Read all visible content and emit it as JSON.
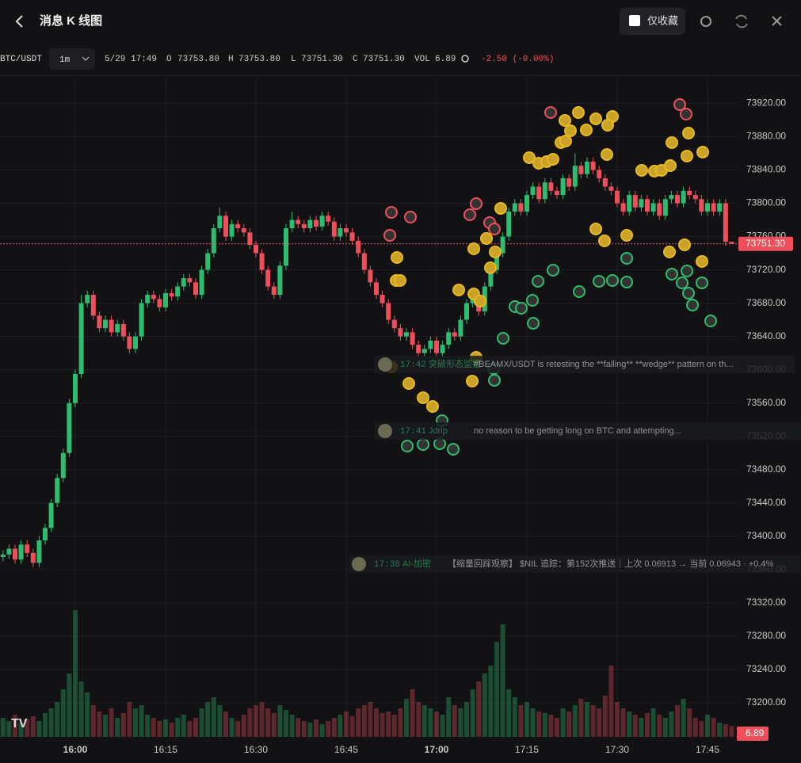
{
  "header": {
    "title": "消息 K 线图",
    "favorite_label": "仅收藏"
  },
  "toolbar": {
    "symbol": "BTC/USDT",
    "interval": "1m",
    "time": "5/29 17:49",
    "open_key": "O",
    "open": "73753.80",
    "high_key": "H",
    "high": "73753.80",
    "low_key": "L",
    "low": "73751.30",
    "close_key": "C",
    "close": "73751.30",
    "volume_key": "VOL",
    "volume": "6.89",
    "change": "-2.50 (-0.00%)"
  },
  "messages": [
    {
      "time": "17:42",
      "source": "突破形态监控",
      "text": "#BEAMX/USDT is retesting the **falling** **wedge** pattern on th..."
    },
    {
      "time": "17:41",
      "source": "Jdrip",
      "text": "no reason to be getting long on BTC and attempting..."
    },
    {
      "time": "17:38",
      "source": "AI-加密",
      "text": "【缩量回踩观察】 $NIL 追踪：第152次推送｜上次 0.06913 → 当前 0.06943 · +0.4%"
    }
  ],
  "chart_data": {
    "type": "candlestick",
    "up_color": "#2ebd6e",
    "down_color": "#ef4f5b",
    "grid": true,
    "ylim": [
      73159,
      73949
    ],
    "yticks": [
      {
        "value": 73200,
        "label": "73200.00"
      },
      {
        "value": 73240,
        "label": "73240.00"
      },
      {
        "value": 73280,
        "label": "73280.00"
      },
      {
        "value": 73320,
        "label": "73320.00"
      },
      {
        "value": 73360,
        "label": "73360.00"
      },
      {
        "value": 73400,
        "label": "73400.00"
      },
      {
        "value": 73440,
        "label": "73440.00"
      },
      {
        "value": 73480,
        "label": "73480.00"
      },
      {
        "value": 73520,
        "label": "73520.00"
      },
      {
        "value": 73560,
        "label": "73560.00"
      },
      {
        "value": 73600,
        "label": "73600.00"
      },
      {
        "value": 73640,
        "label": "73640.00"
      },
      {
        "value": 73680,
        "label": "73680.00"
      },
      {
        "value": 73720,
        "label": "73720.00"
      },
      {
        "value": 73760,
        "label": "73760.00"
      },
      {
        "value": 73800,
        "label": "73800.00"
      },
      {
        "value": 73840,
        "label": "73840.00"
      },
      {
        "value": 73880,
        "label": "73880.00"
      },
      {
        "value": 73920,
        "label": "73920.00"
      }
    ],
    "xticks": [
      {
        "value": 12,
        "label": "16:00"
      },
      {
        "value": 27,
        "label": "16:15"
      },
      {
        "value": 42,
        "label": "16:30"
      },
      {
        "value": 57,
        "label": "16:45"
      },
      {
        "value": 72,
        "label": "17:00"
      },
      {
        "value": 87,
        "label": "17:15"
      },
      {
        "value": 102,
        "label": "17:30"
      },
      {
        "value": 117,
        "label": "17:45"
      }
    ],
    "last_label": "73751.30",
    "open": [
      73375,
      73378,
      73385,
      73372,
      73390,
      73380,
      73368,
      73395,
      73410,
      73440,
      73470,
      73500,
      73560,
      73595,
      73680,
      73690,
      73665,
      73650,
      73660,
      73645,
      73655,
      73640,
      73625,
      73640,
      73680,
      73690,
      73685,
      73675,
      73692,
      73688,
      73700,
      73710,
      73705,
      73690,
      73720,
      73740,
      73770,
      73785,
      73760,
      73775,
      73770,
      73765,
      73750,
      73740,
      73720,
      73700,
      73690,
      73725,
      73770,
      73780,
      73775,
      73770,
      73780,
      73772,
      73785,
      73778,
      73760,
      73770,
      73765,
      73755,
      73740,
      73720,
      73705,
      73690,
      73680,
      73660,
      73650,
      73640,
      73645,
      73630,
      73620,
      73625,
      73635,
      73620,
      73630,
      73645,
      73640,
      73660,
      73680,
      73690,
      73670,
      73700,
      73720,
      73740,
      73760,
      73790,
      73800,
      73790,
      73810,
      73820,
      73805,
      73825,
      73815,
      73810,
      73830,
      73820,
      73845,
      73835,
      73850,
      73840,
      73830,
      73820,
      73815,
      73800,
      73790,
      73810,
      73795,
      73805,
      73790,
      73800,
      73785,
      73805,
      73810,
      73800,
      73815,
      73810,
      73805,
      73790,
      73800,
      73790,
      73800,
      73753.8
    ],
    "high": [
      73383,
      73390,
      73390,
      73395,
      73395,
      73385,
      73400,
      73415,
      73445,
      73475,
      73505,
      73565,
      73600,
      73690,
      73695,
      73695,
      73670,
      73665,
      73665,
      73660,
      73660,
      73645,
      73645,
      73685,
      73695,
      73695,
      73690,
      73697,
      73697,
      73705,
      73715,
      73715,
      73710,
      73725,
      73745,
      73775,
      73795,
      73790,
      73780,
      73780,
      73775,
      73770,
      73755,
      73745,
      73725,
      73705,
      73730,
      73775,
      73790,
      73785,
      73780,
      73785,
      73785,
      73790,
      73790,
      73783,
      73775,
      73775,
      73770,
      73760,
      73745,
      73725,
      73710,
      73695,
      73685,
      73665,
      73655,
      73650,
      73650,
      73635,
      73630,
      73640,
      73640,
      73635,
      73650,
      73650,
      73665,
      73685,
      73695,
      73695,
      73705,
      73725,
      73745,
      73765,
      73795,
      73805,
      73805,
      73815,
      73825,
      73825,
      73830,
      73830,
      73820,
      73835,
      73835,
      73860,
      73850,
      73855,
      73855,
      73845,
      73835,
      73825,
      73820,
      73805,
      73815,
      73815,
      73810,
      73810,
      73805,
      73805,
      73810,
      73815,
      73815,
      73820,
      73820,
      73815,
      73810,
      73805,
      73805,
      73805,
      73805,
      73753.8
    ],
    "low": [
      73370,
      73373,
      73367,
      73367,
      73375,
      73363,
      73363,
      73390,
      73405,
      73435,
      73465,
      73495,
      73555,
      73590,
      73675,
      73660,
      73645,
      73645,
      73640,
      73640,
      73635,
      73620,
      73620,
      73635,
      73675,
      73680,
      73670,
      73670,
      73683,
      73683,
      73695,
      73700,
      73685,
      73685,
      73715,
      73735,
      73765,
      73755,
      73755,
      73765,
      73760,
      73745,
      73735,
      73715,
      73695,
      73685,
      73685,
      73720,
      73765,
      73770,
      73765,
      73765,
      73767,
      73767,
      73773,
      73755,
      73755,
      73760,
      73750,
      73735,
      73715,
      73700,
      73685,
      73675,
      73655,
      73645,
      73635,
      73635,
      73625,
      73615,
      73615,
      73620,
      73615,
      73615,
      73625,
      73635,
      73635,
      73655,
      73675,
      73665,
      73665,
      73695,
      73715,
      73735,
      73755,
      73785,
      73785,
      73785,
      73805,
      73800,
      73800,
      73810,
      73805,
      73805,
      73815,
      73815,
      73830,
      73830,
      73835,
      73825,
      73815,
      73810,
      73795,
      73785,
      73785,
      73790,
      73790,
      73785,
      73785,
      73780,
      73780,
      73800,
      73795,
      73795,
      73805,
      73800,
      73785,
      73785,
      73785,
      73785,
      73748.8,
      73751.3
    ],
    "close": [
      73378,
      73385,
      73372,
      73390,
      73380,
      73368,
      73395,
      73410,
      73440,
      73470,
      73500,
      73560,
      73595,
      73680,
      73690,
      73665,
      73650,
      73660,
      73645,
      73655,
      73640,
      73625,
      73640,
      73680,
      73690,
      73685,
      73675,
      73692,
      73688,
      73700,
      73710,
      73705,
      73690,
      73720,
      73740,
      73770,
      73785,
      73760,
      73775,
      73770,
      73765,
      73750,
      73740,
      73720,
      73700,
      73690,
      73725,
      73770,
      73780,
      73775,
      73770,
      73780,
      73772,
      73785,
      73778,
      73760,
      73770,
      73765,
      73755,
      73740,
      73720,
      73705,
      73690,
      73680,
      73660,
      73650,
      73640,
      73645,
      73630,
      73620,
      73625,
      73635,
      73620,
      73630,
      73645,
      73640,
      73660,
      73680,
      73690,
      73670,
      73700,
      73720,
      73740,
      73760,
      73790,
      73800,
      73790,
      73810,
      73820,
      73805,
      73825,
      73815,
      73810,
      73830,
      73820,
      73845,
      73835,
      73850,
      73840,
      73830,
      73820,
      73815,
      73800,
      73790,
      73810,
      73795,
      73805,
      73790,
      73800,
      73785,
      73805,
      73810,
      73800,
      73815,
      73810,
      73805,
      73790,
      73800,
      73790,
      73800,
      73753.8,
      73751.3
    ],
    "vlim": [
      0,
      85
    ],
    "volumes": [
      12,
      10,
      14,
      9,
      11,
      13,
      10,
      15,
      18,
      22,
      30,
      40,
      80,
      35,
      28,
      20,
      16,
      14,
      18,
      12,
      15,
      22,
      18,
      20,
      14,
      12,
      10,
      11,
      9,
      12,
      14,
      10,
      12,
      18,
      22,
      25,
      20,
      16,
      12,
      10,
      14,
      18,
      20,
      22,
      18,
      15,
      20,
      17,
      14,
      12,
      10,
      9,
      11,
      8,
      10,
      12,
      14,
      16,
      13,
      18,
      20,
      22,
      18,
      15,
      16,
      14,
      18,
      24,
      30,
      22,
      20,
      18,
      16,
      14,
      25,
      20,
      18,
      22,
      30,
      35,
      40,
      45,
      60,
      71,
      30,
      25,
      20,
      22,
      18,
      16,
      15,
      14,
      12,
      18,
      16,
      20,
      24,
      22,
      20,
      18,
      26,
      45,
      22,
      18,
      16,
      14,
      12,
      15,
      18,
      14,
      12,
      16,
      20,
      24,
      18,
      12,
      10,
      14,
      12,
      9,
      8,
      6.89
    ]
  }
}
